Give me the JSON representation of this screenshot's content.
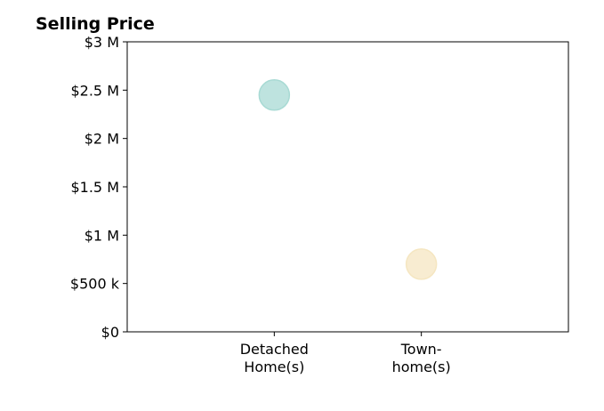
{
  "chart_data": {
    "type": "scatter",
    "title": "Selling Price",
    "categories": [
      "Detached\nHome(s)",
      "Town-\nhome(s)"
    ],
    "series": [
      {
        "values": [
          2450000,
          700000
        ],
        "colors": [
          "#a8dad4",
          "#f5e6c1"
        ]
      }
    ],
    "xlim": [
      0,
      3
    ],
    "ylim": [
      0,
      3000000
    ],
    "yticks": [
      0,
      500000,
      1000000,
      1500000,
      2000000,
      2500000,
      3000000
    ],
    "ytick_labels": [
      "$0",
      "$500 k",
      "$1 M",
      "$1.5 M",
      "$2 M",
      "$2.5 M",
      "$3 M"
    ],
    "grid": false,
    "legend": "none"
  }
}
